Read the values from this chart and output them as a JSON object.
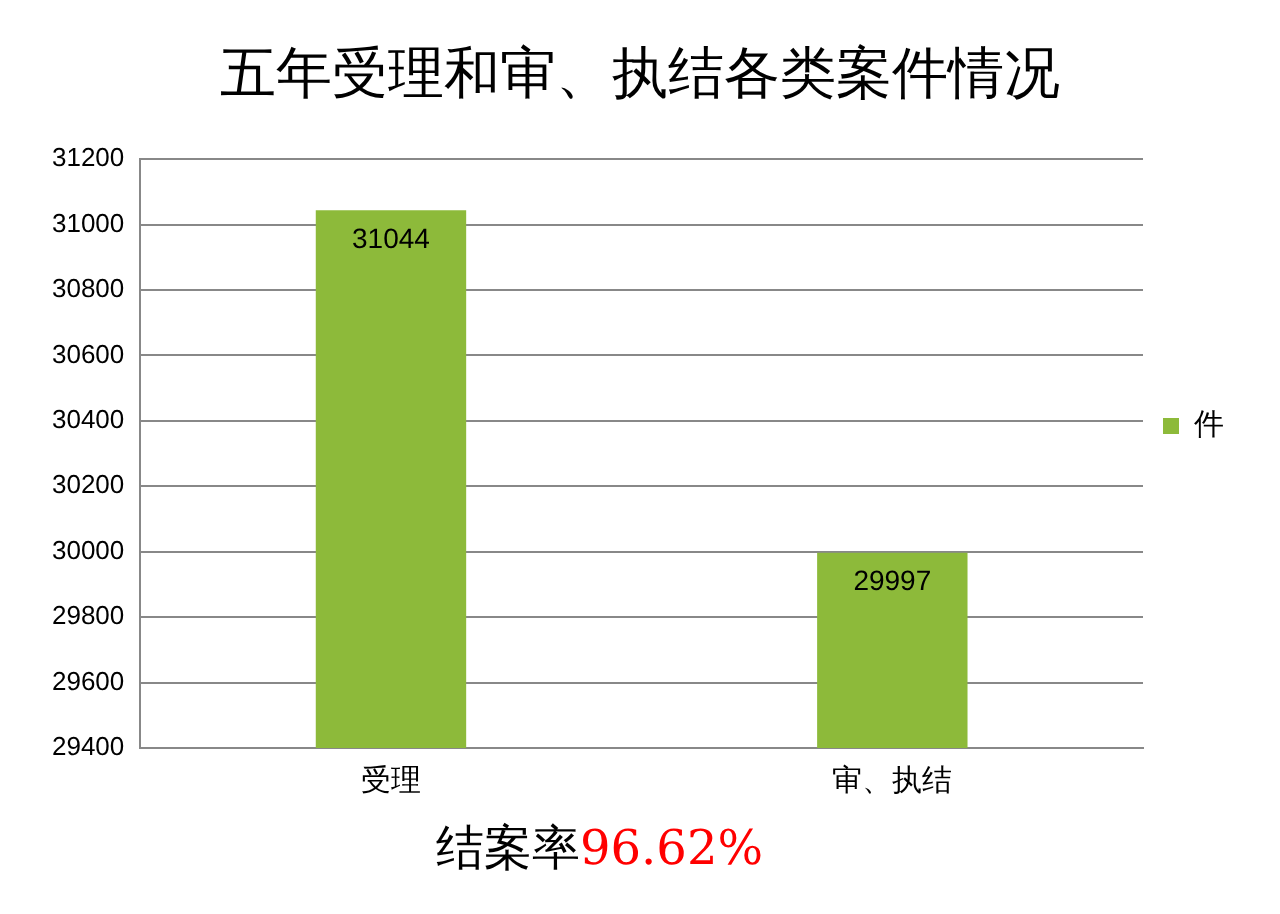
{
  "chart_data": {
    "type": "bar",
    "title": "五年受理和审、执结各类案件情况",
    "categories": [
      "受理",
      "审、执结"
    ],
    "series": [
      {
        "name": "件",
        "color": "#8dba3a",
        "values": [
          31044,
          29997
        ]
      }
    ],
    "ylim": [
      29400,
      31200
    ],
    "yticks": [
      29400,
      29600,
      29800,
      30000,
      30200,
      30400,
      30600,
      30800,
      31000,
      31200
    ],
    "grid": "y",
    "legend": "right",
    "data_labels": true,
    "annotations": [
      "结案率96.62%"
    ]
  }
}
